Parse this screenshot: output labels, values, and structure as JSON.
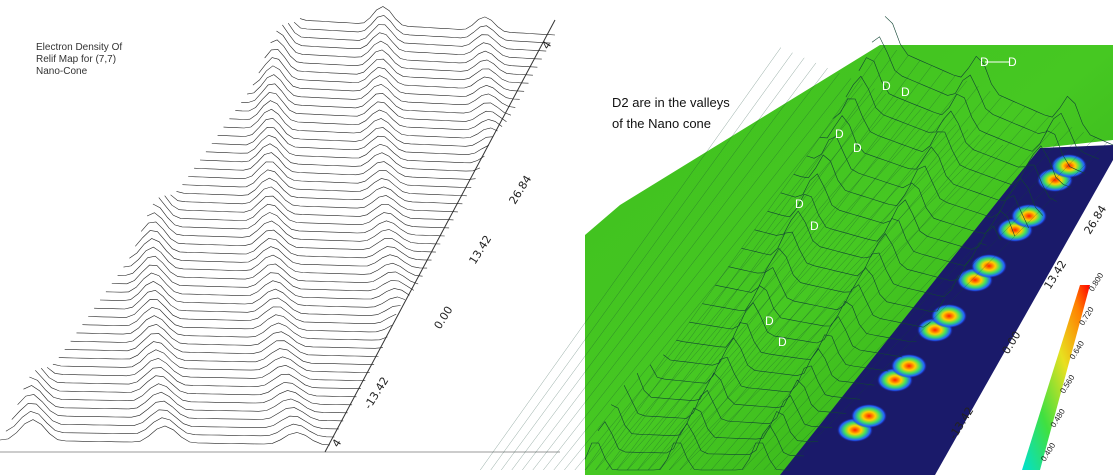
{
  "left_panel": {
    "caption": "Electron Density Of Relif Map for (7,7) Nano-Cone",
    "axis_labels": [
      "4",
      "-13.42",
      "0.00",
      "13.42",
      "26.84",
      "4"
    ]
  },
  "right_panel": {
    "note": "D2 are in the valleys of the Nano cone",
    "d_labels": [
      "D",
      "D",
      "D",
      "D",
      "D",
      "D",
      "D",
      "D",
      "D",
      "D"
    ],
    "axis_labels": [
      "-13.42",
      "0.00",
      "13.42",
      "26.84"
    ],
    "colorbar_labels": [
      "0.800",
      "0.720",
      "0.640",
      "0.560",
      "0.480",
      "0.400"
    ]
  }
}
